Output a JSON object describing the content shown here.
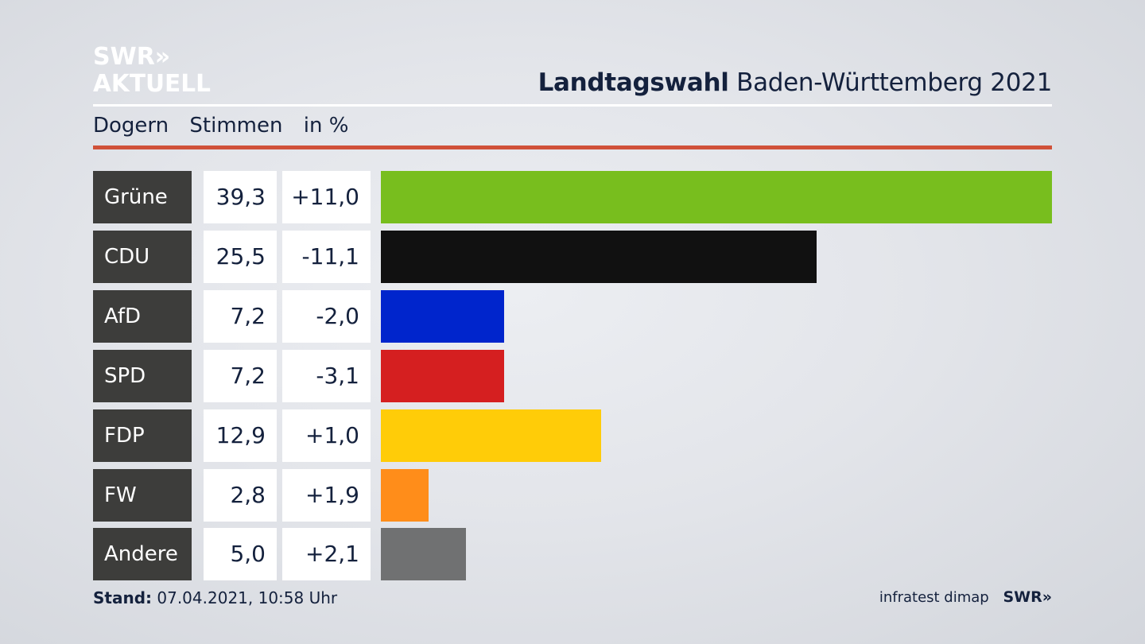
{
  "logo": {
    "line1": "SWR»",
    "line2": "AKTUELL"
  },
  "header": {
    "title_bold": "Landtagswahl",
    "title_rest": "Baden-Württemberg 2021",
    "subtitle_place": "Dogern",
    "subtitle_metric": "Stimmen",
    "subtitle_unit": "in %"
  },
  "colors": {
    "accent_rule": "#d05139",
    "label_bg": "#3d3d3b"
  },
  "chart_data": {
    "type": "bar",
    "orientation": "horizontal",
    "categories": [
      "Grüne",
      "CDU",
      "AfD",
      "SPD",
      "FDP",
      "FW",
      "Andere"
    ],
    "values": [
      39.3,
      25.5,
      7.2,
      7.2,
      12.9,
      2.8,
      5.0
    ],
    "values_text": [
      "39,3",
      "25,5",
      "7,2",
      "7,2",
      "12,9",
      "2,8",
      "5,0"
    ],
    "changes": [
      11.0,
      -11.1,
      -2.0,
      -3.1,
      1.0,
      1.9,
      2.1
    ],
    "changes_text": [
      "+11,0",
      "-11,1",
      "-2,0",
      "-3,1",
      "+1,0",
      "+1,9",
      "+2,1"
    ],
    "bar_colors": [
      "#78be1e",
      "#111111",
      "#0025cc",
      "#d51f20",
      "#ffcc08",
      "#ff8d1a",
      "#707172"
    ],
    "xlim": [
      0,
      39.3
    ]
  },
  "footer": {
    "stand_label": "Stand:",
    "stand_value": "07.04.2021, 10:58 Uhr",
    "source": "infratest dimap",
    "brand": "SWR»"
  }
}
